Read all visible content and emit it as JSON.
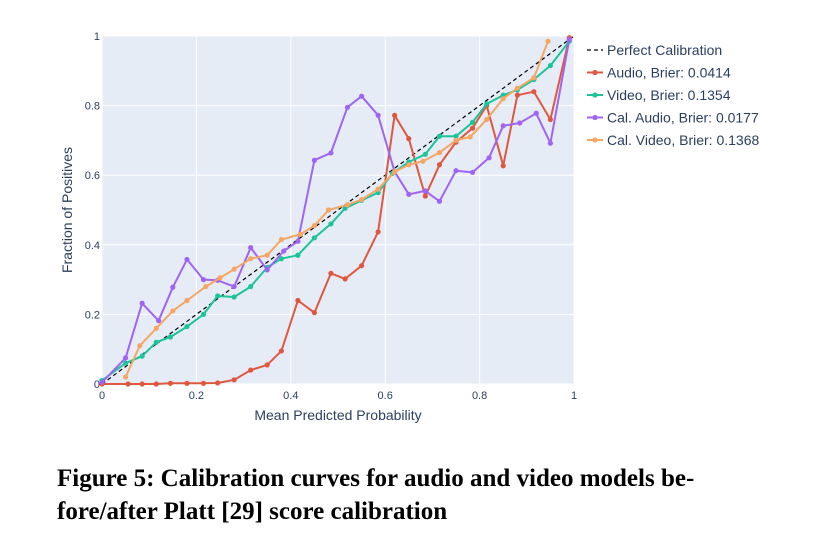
{
  "caption": "Figure 5: Calibration curves for audio and video models be-fore/after Platt [29] score calibration",
  "caption_lines": [
    "Figure 5: Calibration curves for audio and video models be-",
    "fore/after Platt [29] score calibration"
  ],
  "chart_data": {
    "type": "line",
    "title": "",
    "xlabel": "Mean Predicted Probability",
    "ylabel": "Fraction of Positives",
    "xlim": [
      0,
      1
    ],
    "ylim": [
      0,
      1
    ],
    "x_ticks": [
      0,
      0.2,
      0.4,
      0.6,
      0.8,
      1
    ],
    "x_tick_labels": [
      "0",
      "0.2",
      "0.4",
      "0.6",
      "0.8",
      "1"
    ],
    "y_ticks": [
      0,
      0.2,
      0.4,
      0.6,
      0.8,
      1
    ],
    "y_tick_labels": [
      "0",
      "0.2",
      "0.4",
      "0.6",
      "0.8",
      "1"
    ],
    "grid": true,
    "plot_background": "#e5ecf6",
    "legend_position": "top-right outside",
    "series": [
      {
        "name": "Perfect Calibration",
        "color": "#000000",
        "dash": true,
        "markers": false,
        "x": [
          0,
          1
        ],
        "y": [
          0,
          1
        ]
      },
      {
        "name": "Audio, Brier: 0.0414",
        "color": "#e0573f",
        "markers": true,
        "x": [
          0.0,
          0.055,
          0.085,
          0.115,
          0.145,
          0.18,
          0.215,
          0.245,
          0.28,
          0.315,
          0.35,
          0.38,
          0.415,
          0.45,
          0.485,
          0.515,
          0.55,
          0.585,
          0.62,
          0.65,
          0.685,
          0.715,
          0.75,
          0.785,
          0.815,
          0.85,
          0.88,
          0.915,
          0.95,
          0.99
        ],
        "y": [
          0.0,
          0.0,
          0.0,
          0.0,
          0.002,
          0.002,
          0.002,
          0.003,
          0.012,
          0.04,
          0.055,
          0.095,
          0.24,
          0.205,
          0.318,
          0.302,
          0.34,
          0.437,
          0.772,
          0.705,
          0.54,
          0.63,
          0.695,
          0.735,
          0.8,
          0.627,
          0.83,
          0.84,
          0.76,
          0.995
        ]
      },
      {
        "name": "Video, Brier: 0.1354",
        "color": "#1dc49a",
        "markers": true,
        "x": [
          0.0,
          0.05,
          0.085,
          0.115,
          0.145,
          0.18,
          0.215,
          0.245,
          0.28,
          0.315,
          0.35,
          0.38,
          0.415,
          0.45,
          0.485,
          0.515,
          0.55,
          0.585,
          0.615,
          0.65,
          0.685,
          0.715,
          0.75,
          0.785,
          0.815,
          0.85,
          0.88,
          0.915,
          0.95,
          0.99
        ],
        "y": [
          0.01,
          0.06,
          0.08,
          0.12,
          0.135,
          0.165,
          0.2,
          0.253,
          0.25,
          0.28,
          0.335,
          0.36,
          0.37,
          0.42,
          0.46,
          0.505,
          0.528,
          0.55,
          0.605,
          0.638,
          0.66,
          0.712,
          0.712,
          0.752,
          0.805,
          0.83,
          0.845,
          0.875,
          0.915,
          0.985
        ]
      },
      {
        "name": "Cal. Audio, Brier: 0.0177",
        "color": "#a064f2",
        "markers": true,
        "x": [
          0.0,
          0.05,
          0.085,
          0.12,
          0.15,
          0.18,
          0.215,
          0.245,
          0.28,
          0.315,
          0.35,
          0.385,
          0.415,
          0.45,
          0.485,
          0.52,
          0.55,
          0.585,
          0.62,
          0.65,
          0.685,
          0.715,
          0.75,
          0.785,
          0.82,
          0.85,
          0.885,
          0.92,
          0.95,
          0.99
        ],
        "y": [
          0.005,
          0.075,
          0.232,
          0.182,
          0.278,
          0.358,
          0.3,
          0.298,
          0.28,
          0.392,
          0.328,
          0.382,
          0.41,
          0.643,
          0.664,
          0.795,
          0.827,
          0.772,
          0.61,
          0.545,
          0.555,
          0.525,
          0.613,
          0.608,
          0.65,
          0.742,
          0.75,
          0.778,
          0.692,
          0.99
        ]
      },
      {
        "name": "Cal. Video, Brier: 0.1368",
        "color": "#f5a663",
        "markers": true,
        "x": [
          0.05,
          0.08,
          0.115,
          0.15,
          0.18,
          0.22,
          0.25,
          0.28,
          0.315,
          0.35,
          0.38,
          0.42,
          0.45,
          0.48,
          0.52,
          0.55,
          0.585,
          0.62,
          0.65,
          0.68,
          0.715,
          0.75,
          0.78,
          0.815,
          0.85,
          0.88,
          0.915,
          0.945
        ],
        "y": [
          0.02,
          0.11,
          0.16,
          0.21,
          0.24,
          0.28,
          0.305,
          0.33,
          0.36,
          0.37,
          0.415,
          0.43,
          0.455,
          0.5,
          0.515,
          0.53,
          0.56,
          0.61,
          0.63,
          0.64,
          0.665,
          0.7,
          0.71,
          0.76,
          0.82,
          0.85,
          0.88,
          0.985
        ]
      }
    ]
  }
}
